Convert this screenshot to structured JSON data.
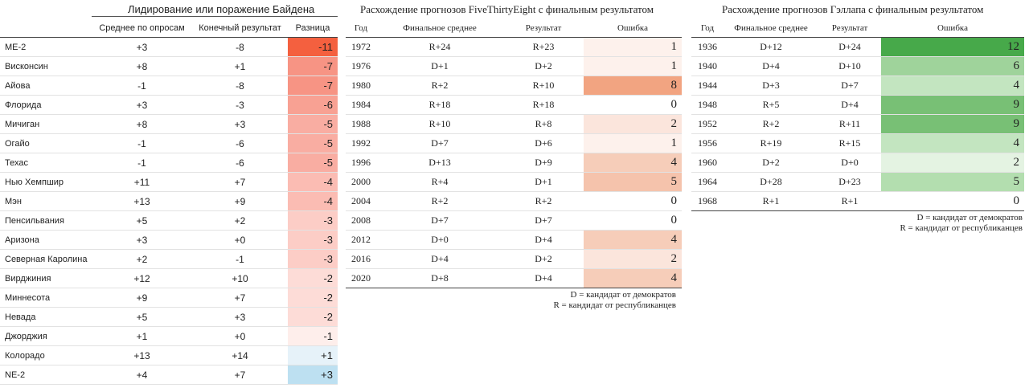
{
  "biden": {
    "title": "Лидирование или поражение Байдена",
    "headers": [
      "",
      "Среднее по опросам",
      "Конечный результат",
      "Разница"
    ],
    "rows": [
      {
        "state": "ME-2",
        "poll": "+3",
        "result": "-8",
        "diff": "-11",
        "color": "#f4603f"
      },
      {
        "state": "Висконсин",
        "poll": "+8",
        "result": "+1",
        "diff": "-7",
        "color": "#f79484"
      },
      {
        "state": "Айова",
        "poll": "-1",
        "result": "-8",
        "diff": "-7",
        "color": "#f79484"
      },
      {
        "state": "Флорида",
        "poll": "+3",
        "result": "-3",
        "diff": "-6",
        "color": "#f8a193"
      },
      {
        "state": "Мичиган",
        "poll": "+8",
        "result": "+3",
        "diff": "-5",
        "color": "#f9ada2"
      },
      {
        "state": "Огайо",
        "poll": "-1",
        "result": "-6",
        "diff": "-5",
        "color": "#f9ada2"
      },
      {
        "state": "Техас",
        "poll": "-1",
        "result": "-6",
        "diff": "-5",
        "color": "#f9ada2"
      },
      {
        "state": "Нью Хемпшир",
        "poll": "+11",
        "result": "+7",
        "diff": "-4",
        "color": "#fbbcb3"
      },
      {
        "state": "Мэн",
        "poll": "+13",
        "result": "+9",
        "diff": "-4",
        "color": "#fbbcb3"
      },
      {
        "state": "Пенсильвания",
        "poll": "+5",
        "result": "+2",
        "diff": "-3",
        "color": "#fccdc6"
      },
      {
        "state": "Аризона",
        "poll": "+3",
        "result": "+0",
        "diff": "-3",
        "color": "#fccdc6"
      },
      {
        "state": "Северная Каролина",
        "poll": "+2",
        "result": "-1",
        "diff": "-3",
        "color": "#fccdc6"
      },
      {
        "state": "Вирджиния",
        "poll": "+12",
        "result": "+10",
        "diff": "-2",
        "color": "#fddcd7"
      },
      {
        "state": "Миннесота",
        "poll": "+9",
        "result": "+7",
        "diff": "-2",
        "color": "#fddcd7"
      },
      {
        "state": "Невада",
        "poll": "+5",
        "result": "+3",
        "diff": "-2",
        "color": "#fddcd7"
      },
      {
        "state": "Джорджия",
        "poll": "+1",
        "result": "+0",
        "diff": "-1",
        "color": "#feeeeb"
      },
      {
        "state": "Колорадо",
        "poll": "+13",
        "result": "+14",
        "diff": "+1",
        "color": "#e6f2f9"
      },
      {
        "state": "NE-2",
        "poll": "+4",
        "result": "+7",
        "diff": "+3",
        "color": "#bde0f1"
      }
    ]
  },
  "fte": {
    "title": "Расхождение прогнозов FiveThirtyEight с финальным результатом",
    "headers": [
      "Год",
      "Финальное среднее",
      "Результат",
      "Ошибка"
    ],
    "rows": [
      {
        "year": "1972",
        "avg": "R+24",
        "result": "R+23",
        "err": "1",
        "color": "#fdf1ec"
      },
      {
        "year": "1976",
        "avg": "D+1",
        "result": "D+2",
        "err": "1",
        "color": "#fdf1ec"
      },
      {
        "year": "1980",
        "avg": "R+2",
        "result": "R+10",
        "err": "8",
        "color": "#f2a481"
      },
      {
        "year": "1984",
        "avg": "R+18",
        "result": "R+18",
        "err": "0",
        "color": "#ffffff"
      },
      {
        "year": "1988",
        "avg": "R+10",
        "result": "R+8",
        "err": "2",
        "color": "#fbe5dc"
      },
      {
        "year": "1992",
        "avg": "D+7",
        "result": "D+6",
        "err": "1",
        "color": "#fdf1ec"
      },
      {
        "year": "1996",
        "avg": "D+13",
        "result": "D+9",
        "err": "4",
        "color": "#f6cdb9"
      },
      {
        "year": "2000",
        "avg": "R+4",
        "result": "D+1",
        "err": "5",
        "color": "#f5c3ac"
      },
      {
        "year": "2004",
        "avg": "R+2",
        "result": "R+2",
        "err": "0",
        "color": "#ffffff"
      },
      {
        "year": "2008",
        "avg": "D+7",
        "result": "D+7",
        "err": "0",
        "color": "#ffffff"
      },
      {
        "year": "2012",
        "avg": "D+0",
        "result": "D+4",
        "err": "4",
        "color": "#f6cdb9"
      },
      {
        "year": "2016",
        "avg": "D+4",
        "result": "D+2",
        "err": "2",
        "color": "#fbe5dc"
      },
      {
        "year": "2020",
        "avg": "D+8",
        "result": "D+4",
        "err": "4",
        "color": "#f6cdb9"
      }
    ],
    "legend": [
      "D = кандидат от демократов",
      "R = кандидат от республиканцев"
    ]
  },
  "gallup": {
    "title": "Расхождение прогнозов Гэллапа с финальным результатом",
    "headers": [
      "Год",
      "Финальное среднее",
      "Результат",
      "Ошибка"
    ],
    "rows": [
      {
        "year": "1936",
        "avg": "D+12",
        "result": "D+24",
        "err": "12",
        "color": "#47a94a"
      },
      {
        "year": "1940",
        "avg": "D+4",
        "result": "D+10",
        "err": "6",
        "color": "#9fd39b"
      },
      {
        "year": "1944",
        "avg": "D+3",
        "result": "D+7",
        "err": "4",
        "color": "#c3e5c0"
      },
      {
        "year": "1948",
        "avg": "R+5",
        "result": "D+4",
        "err": "9",
        "color": "#78c075"
      },
      {
        "year": "1952",
        "avg": "R+2",
        "result": "R+11",
        "err": "9",
        "color": "#78c075"
      },
      {
        "year": "1956",
        "avg": "R+19",
        "result": "R+15",
        "err": "4",
        "color": "#c3e5c0"
      },
      {
        "year": "1960",
        "avg": "D+2",
        "result": "D+0",
        "err": "2",
        "color": "#e4f3e2"
      },
      {
        "year": "1964",
        "avg": "D+28",
        "result": "D+23",
        "err": "5",
        "color": "#b3deaf"
      },
      {
        "year": "1968",
        "avg": "R+1",
        "result": "R+1",
        "err": "0",
        "color": "#ffffff"
      }
    ],
    "legend": [
      "D = кандидат от демократов",
      "R = кандидат от республиканцев"
    ]
  },
  "chart_data": [
    {
      "type": "table",
      "title": "Лидирование или поражение Байдена",
      "columns": [
        "",
        "Среднее по опросам",
        "Конечный результат",
        "Разница"
      ],
      "rows": [
        [
          "ME-2",
          "+3",
          "-8",
          "-11"
        ],
        [
          "Висконсин",
          "+8",
          "+1",
          "-7"
        ],
        [
          "Айова",
          "-1",
          "-8",
          "-7"
        ],
        [
          "Флорида",
          "+3",
          "-3",
          "-6"
        ],
        [
          "Мичиган",
          "+8",
          "+3",
          "-5"
        ],
        [
          "Огайо",
          "-1",
          "-6",
          "-5"
        ],
        [
          "Техас",
          "-1",
          "-6",
          "-5"
        ],
        [
          "Нью Хемпшир",
          "+11",
          "+7",
          "-4"
        ],
        [
          "Мэн",
          "+13",
          "+9",
          "-4"
        ],
        [
          "Пенсильвания",
          "+5",
          "+2",
          "-3"
        ],
        [
          "Аризона",
          "+3",
          "+0",
          "-3"
        ],
        [
          "Северная Каролина",
          "+2",
          "-1",
          "-3"
        ],
        [
          "Вирджиния",
          "+12",
          "+10",
          "-2"
        ],
        [
          "Миннесота",
          "+9",
          "+7",
          "-2"
        ],
        [
          "Невада",
          "+5",
          "+3",
          "-2"
        ],
        [
          "Джорджия",
          "+1",
          "+0",
          "-1"
        ],
        [
          "Колорадо",
          "+13",
          "+14",
          "+1"
        ],
        [
          "NE-2",
          "+4",
          "+7",
          "+3"
        ]
      ]
    },
    {
      "type": "table",
      "title": "Расхождение прогнозов FiveThirtyEight с финальным результатом",
      "columns": [
        "Год",
        "Финальное среднее",
        "Результат",
        "Ошибка"
      ],
      "rows": [
        [
          "1972",
          "R+24",
          "R+23",
          "1"
        ],
        [
          "1976",
          "D+1",
          "D+2",
          "1"
        ],
        [
          "1980",
          "R+2",
          "R+10",
          "8"
        ],
        [
          "1984",
          "R+18",
          "R+18",
          "0"
        ],
        [
          "1988",
          "R+10",
          "R+8",
          "2"
        ],
        [
          "1992",
          "D+7",
          "D+6",
          "1"
        ],
        [
          "1996",
          "D+13",
          "D+9",
          "4"
        ],
        [
          "2000",
          "R+4",
          "D+1",
          "5"
        ],
        [
          "2004",
          "R+2",
          "R+2",
          "0"
        ],
        [
          "2008",
          "D+7",
          "D+7",
          "0"
        ],
        [
          "2012",
          "D+0",
          "D+4",
          "4"
        ],
        [
          "2016",
          "D+4",
          "D+2",
          "2"
        ],
        [
          "2020",
          "D+8",
          "D+4",
          "4"
        ]
      ]
    },
    {
      "type": "table",
      "title": "Расхождение прогнозов Гэллапа с финальным результатом",
      "columns": [
        "Год",
        "Финальное среднее",
        "Результат",
        "Ошибка"
      ],
      "rows": [
        [
          "1936",
          "D+12",
          "D+24",
          "12"
        ],
        [
          "1940",
          "D+4",
          "D+10",
          "6"
        ],
        [
          "1944",
          "D+3",
          "D+7",
          "4"
        ],
        [
          "1948",
          "R+5",
          "D+4",
          "9"
        ],
        [
          "1952",
          "R+2",
          "R+11",
          "9"
        ],
        [
          "1956",
          "R+19",
          "R+15",
          "4"
        ],
        [
          "1960",
          "D+2",
          "D+0",
          "2"
        ],
        [
          "1964",
          "D+28",
          "D+23",
          "5"
        ],
        [
          "1968",
          "R+1",
          "R+1",
          "0"
        ]
      ]
    }
  ]
}
